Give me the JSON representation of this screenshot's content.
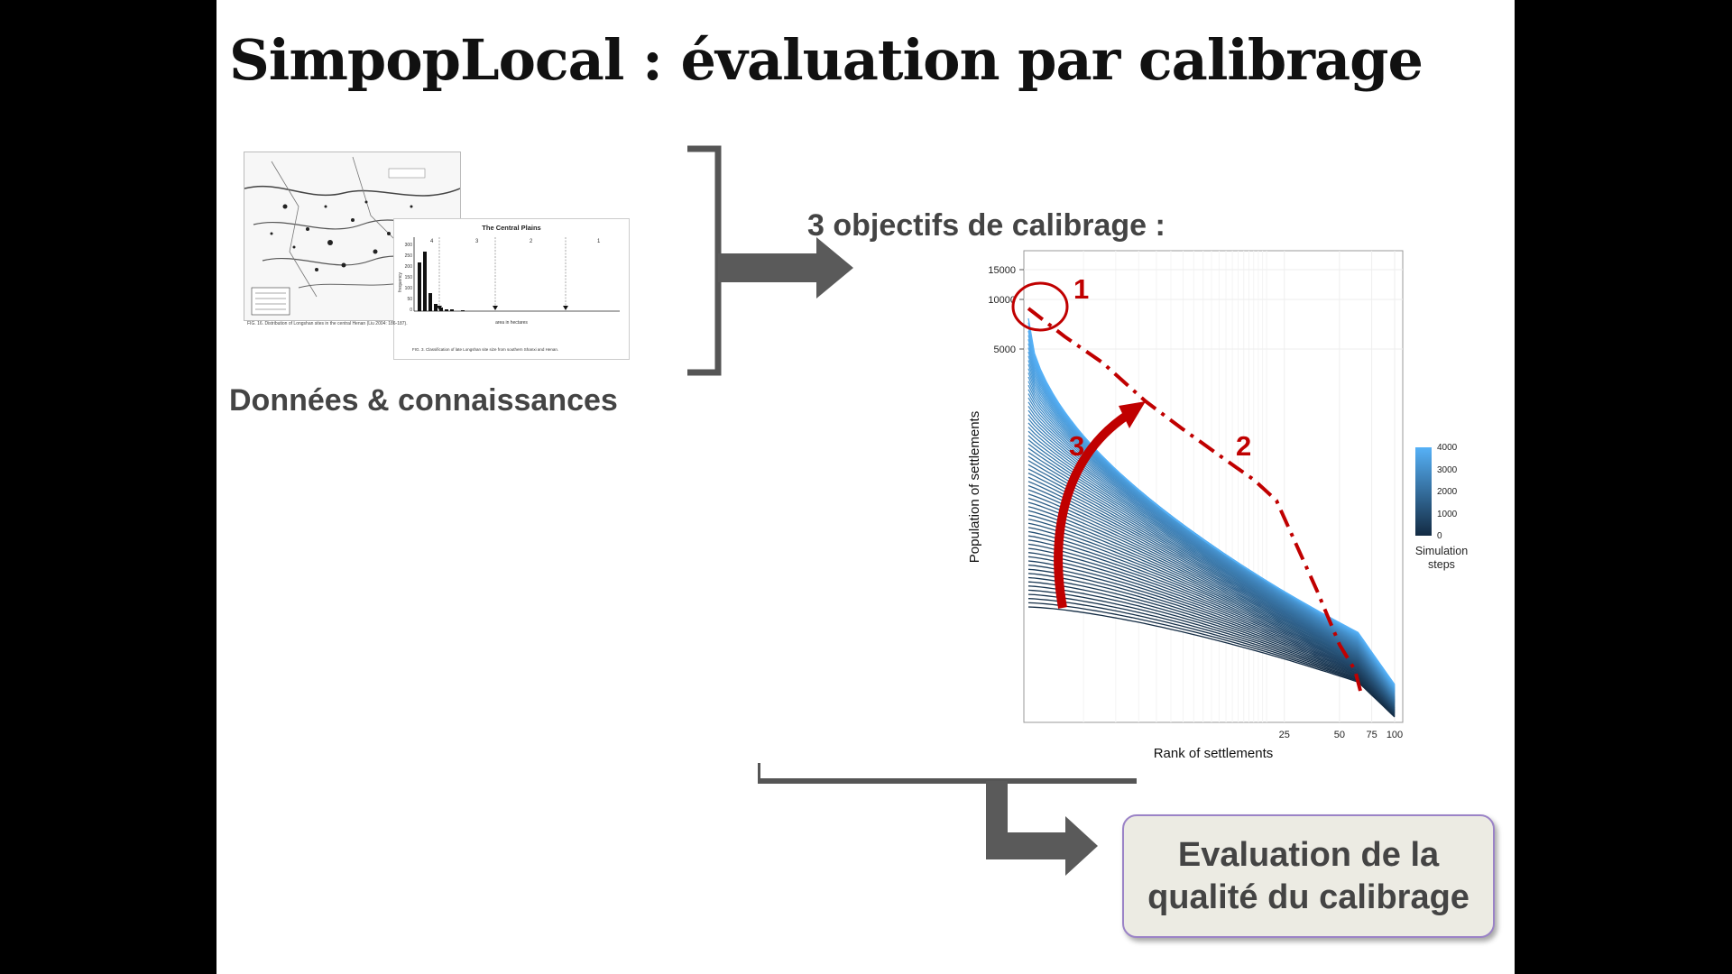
{
  "slide": {
    "title": "SimpopLocal : évaluation par calibrage",
    "data_label": "Données & connaissances",
    "objectives_label": "3 objectifs de calibrage :",
    "result_label": "Evaluation de la qualité du calibrage",
    "accent_color": "#c00000",
    "arrow_color": "#555555"
  },
  "source_histogram": {
    "title": "The Central Plains",
    "xlabel": "area in hectares",
    "ylabel": "frequency",
    "y_ticks": [
      "300",
      "250",
      "200",
      "150",
      "100",
      "50",
      "0"
    ],
    "zones": [
      "4",
      "3",
      "2",
      "1"
    ],
    "caption_map": "FIG. 16. Distribution of Longshan sites in the central Henan (Liu 2004: 186-187).",
    "caption_hist": "FIG. 3. Classification of late Longshan site size from southern Shanxi and Henan."
  },
  "chart_data": {
    "type": "line",
    "title": "",
    "xlabel": "Rank of settlements",
    "ylabel": "Population of settlements",
    "x_ticks": [
      "25",
      "50",
      "75",
      "100"
    ],
    "y_ticks": [
      "15000",
      "10000",
      "5000"
    ],
    "legend": {
      "title": "Simulation steps",
      "ticks": [
        "4000",
        "3000",
        "2000",
        "1000",
        "0"
      ],
      "range": [
        0,
        4000
      ],
      "placement": "right"
    },
    "annotations": [
      "1",
      "2",
      "3"
    ],
    "grid": true
  }
}
